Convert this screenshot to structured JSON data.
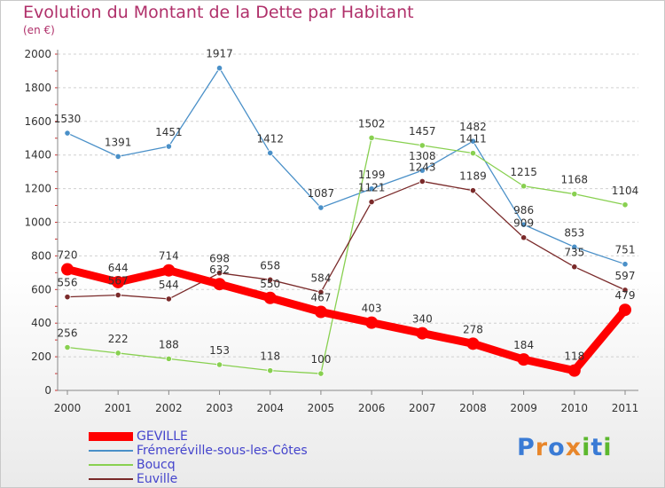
{
  "header": {
    "title": "Evolution du Montant de la Dette par Habitant",
    "subtitle": "(en €)"
  },
  "logo": {
    "text": "Proxiti",
    "letter_colors": [
      "#3a7bd5",
      "#e8862a",
      "#3a7bd5",
      "#e8862a",
      "#5cb82e",
      "#3a7bd5",
      "#5cb82e"
    ]
  },
  "chart_data": {
    "type": "line",
    "title": "Evolution du Montant de la Dette par Habitant",
    "subtitle": "(en €)",
    "xlabel": "",
    "ylabel": "",
    "x": [
      "2000",
      "2001",
      "2002",
      "2003",
      "2004",
      "2005",
      "2006",
      "2007",
      "2008",
      "2009",
      "2010",
      "2011"
    ],
    "ylim": [
      0,
      2000
    ],
    "yticks": [
      0,
      200,
      400,
      600,
      800,
      1000,
      1200,
      1400,
      1600,
      1800,
      2000
    ],
    "grid": "horizontal dashed",
    "legend": "bottom-left",
    "series": [
      {
        "name": "GEVILLE",
        "color": "#ff0000",
        "emphasis": true,
        "values": [
          720,
          644,
          714,
          632,
          550,
          467,
          403,
          340,
          278,
          184,
          118,
          479
        ]
      },
      {
        "name": "Frémeréville-sous-les-Côtes",
        "color": "#4a90c8",
        "values": [
          1530,
          1391,
          1451,
          1917,
          1412,
          1087,
          1199,
          1308,
          1482,
          986,
          853,
          751
        ]
      },
      {
        "name": "Boucq",
        "color": "#88d050",
        "values": [
          256,
          222,
          188,
          153,
          118,
          100,
          1502,
          1457,
          1411,
          1215,
          1168,
          1104
        ]
      },
      {
        "name": "Euville",
        "color": "#7a2a2a",
        "values": [
          556,
          567,
          544,
          698,
          658,
          584,
          1121,
          1243,
          1189,
          909,
          735,
          597
        ]
      }
    ]
  }
}
